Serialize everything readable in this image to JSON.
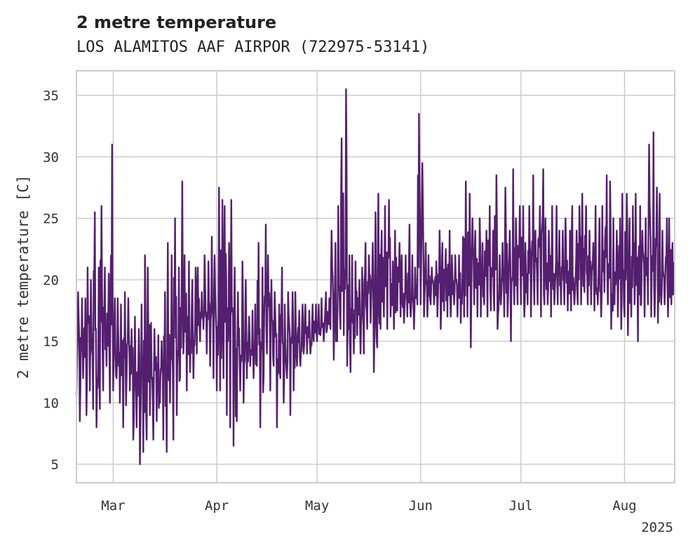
{
  "chart_data": {
    "type": "line",
    "title": "2 metre temperature",
    "subtitle": "LOS ALAMITOS AAF AIRPOR (722975-53141)",
    "xlabel": "",
    "ylabel": "2 metre temperature [C]",
    "xlim": [
      "2025-02-18",
      "2025-08-16"
    ],
    "ylim": [
      3.5,
      37
    ],
    "grid": true,
    "line_color": "#541f6e",
    "x_ticks": [
      {
        "date": "2025-03-01",
        "label": "Mar"
      },
      {
        "date": "2025-04-01",
        "label": "Apr"
      },
      {
        "date": "2025-05-01",
        "label": "May"
      },
      {
        "date": "2025-06-01",
        "label": "Jun"
      },
      {
        "date": "2025-07-01",
        "label": "Jul"
      },
      {
        "date": "2025-08-01",
        "label": "Aug"
      }
    ],
    "x_offset_label": "2025",
    "y_ticks": [
      5,
      10,
      15,
      20,
      25,
      30,
      35
    ],
    "series": [
      {
        "x": [
          "2025-02-18",
          "2025-02-19",
          "2025-02-20",
          "2025-02-21",
          "2025-02-22",
          "2025-02-23",
          "2025-02-24",
          "2025-02-25",
          "2025-02-26",
          "2025-02-27",
          "2025-02-28",
          "2025-03-01",
          "2025-03-02",
          "2025-03-03",
          "2025-03-04",
          "2025-03-05",
          "2025-03-06",
          "2025-03-07",
          "2025-03-08",
          "2025-03-09",
          "2025-03-10",
          "2025-03-11",
          "2025-03-12",
          "2025-03-13",
          "2025-03-14",
          "2025-03-15",
          "2025-03-16",
          "2025-03-17",
          "2025-03-18",
          "2025-03-19",
          "2025-03-20",
          "2025-03-21",
          "2025-03-22",
          "2025-03-23",
          "2025-03-24",
          "2025-03-25",
          "2025-03-26",
          "2025-03-27",
          "2025-03-28",
          "2025-03-29",
          "2025-03-30",
          "2025-03-31",
          "2025-04-01",
          "2025-04-02",
          "2025-04-03",
          "2025-04-04",
          "2025-04-05",
          "2025-04-06",
          "2025-04-07",
          "2025-04-08",
          "2025-04-09",
          "2025-04-10",
          "2025-04-11",
          "2025-04-12",
          "2025-04-13",
          "2025-04-14",
          "2025-04-15",
          "2025-04-16",
          "2025-04-17",
          "2025-04-18",
          "2025-04-19",
          "2025-04-20",
          "2025-04-21",
          "2025-04-22",
          "2025-04-23",
          "2025-04-24",
          "2025-04-25",
          "2025-04-26",
          "2025-04-27",
          "2025-04-28",
          "2025-04-29",
          "2025-04-30",
          "2025-05-01",
          "2025-05-02",
          "2025-05-03",
          "2025-05-04",
          "2025-05-05",
          "2025-05-06",
          "2025-05-07",
          "2025-05-08",
          "2025-05-09",
          "2025-05-10",
          "2025-05-11",
          "2025-05-12",
          "2025-05-13",
          "2025-05-14",
          "2025-05-15",
          "2025-05-16",
          "2025-05-17",
          "2025-05-18",
          "2025-05-19",
          "2025-05-20",
          "2025-05-21",
          "2025-05-22",
          "2025-05-23",
          "2025-05-24",
          "2025-05-25",
          "2025-05-26",
          "2025-05-27",
          "2025-05-28",
          "2025-05-29",
          "2025-05-30",
          "2025-05-31",
          "2025-06-01",
          "2025-06-02",
          "2025-06-03",
          "2025-06-04",
          "2025-06-05",
          "2025-06-06",
          "2025-06-07",
          "2025-06-08",
          "2025-06-09",
          "2025-06-10",
          "2025-06-11",
          "2025-06-12",
          "2025-06-13",
          "2025-06-14",
          "2025-06-15",
          "2025-06-16",
          "2025-06-17",
          "2025-06-18",
          "2025-06-19",
          "2025-06-20",
          "2025-06-21",
          "2025-06-22",
          "2025-06-23",
          "2025-06-24",
          "2025-06-25",
          "2025-06-26",
          "2025-06-27",
          "2025-06-28",
          "2025-06-29",
          "2025-06-30",
          "2025-07-01",
          "2025-07-02",
          "2025-07-03",
          "2025-07-04",
          "2025-07-05",
          "2025-07-06",
          "2025-07-07",
          "2025-07-08",
          "2025-07-09",
          "2025-07-10",
          "2025-07-11",
          "2025-07-12",
          "2025-07-13",
          "2025-07-14",
          "2025-07-15",
          "2025-07-16",
          "2025-07-17",
          "2025-07-18",
          "2025-07-19",
          "2025-07-20",
          "2025-07-21",
          "2025-07-22",
          "2025-07-23",
          "2025-07-24",
          "2025-07-25",
          "2025-07-26",
          "2025-07-27",
          "2025-07-28",
          "2025-07-29",
          "2025-07-30",
          "2025-07-31",
          "2025-08-01",
          "2025-08-02",
          "2025-08-03",
          "2025-08-04",
          "2025-08-05",
          "2025-08-06",
          "2025-08-07",
          "2025-08-08",
          "2025-08-09",
          "2025-08-10",
          "2025-08-11",
          "2025-08-12",
          "2025-08-13",
          "2025-08-14",
          "2025-08-15"
        ],
        "min": [
          10.5,
          8.5,
          12,
          9,
          11,
          9.5,
          8,
          9.5,
          11,
          13,
          10,
          11,
          12,
          10,
          8,
          12,
          11,
          7,
          8,
          5,
          6,
          7,
          9,
          7,
          8.5,
          10,
          7,
          6,
          10,
          7,
          9,
          12,
          14,
          11,
          12.5,
          12,
          14,
          15,
          16,
          14,
          13,
          12,
          11,
          11,
          12,
          9,
          8,
          6.5,
          8.5,
          11,
          10,
          12,
          13,
          12,
          13,
          8,
          12,
          14,
          11,
          13,
          8,
          12,
          10,
          12,
          9,
          11,
          13,
          13,
          14,
          14,
          14,
          15,
          15,
          15.5,
          15,
          16,
          16,
          13.5,
          15,
          16,
          15.5,
          13,
          12.5,
          14,
          15.5,
          14,
          14,
          16,
          16.5,
          12.5,
          14.5,
          16,
          17,
          16,
          17,
          16,
          17.5,
          17,
          16.5,
          17,
          17,
          16,
          18,
          18,
          17,
          17,
          18,
          18,
          17,
          16,
          17.5,
          17,
          17,
          18,
          17,
          16.5,
          17,
          17,
          14.5,
          18,
          17,
          17,
          18,
          17,
          17.5,
          17.5,
          16,
          18,
          17,
          17,
          15,
          18,
          18,
          18,
          17,
          18,
          17,
          18,
          18,
          17,
          18,
          18,
          17,
          18,
          18,
          18,
          18,
          17.5,
          17.5,
          18,
          18,
          18,
          19,
          18,
          18,
          17.5,
          18,
          17,
          19,
          18,
          16,
          18,
          17,
          16,
          17,
          15.5,
          17,
          18,
          15,
          18,
          17,
          18,
          17,
          17,
          16.5,
          18,
          18,
          17,
          18,
          18,
          18,
          18,
          18,
          19,
          18.5
        ],
        "max": [
          19,
          18.5,
          18.5,
          21,
          20,
          25.5,
          21,
          26,
          21,
          20.5,
          31,
          18.5,
          18.5,
          18,
          19,
          18.5,
          16,
          17,
          16,
          18,
          22,
          21,
          16.5,
          16,
          15.5,
          15,
          19,
          23,
          22,
          25,
          21,
          28,
          22,
          21.5,
          20,
          21,
          21,
          19,
          22,
          21.5,
          23.5,
          22,
          27.5,
          26.5,
          26,
          23,
          26.5,
          21,
          19,
          21.5,
          20,
          17,
          17.5,
          18,
          23,
          21,
          24.5,
          22,
          20,
          19,
          18,
          21,
          18,
          19,
          19,
          19,
          17.5,
          18,
          18,
          17.5,
          18,
          18,
          18,
          18.5,
          19,
          18.5,
          24,
          23,
          26,
          31.5,
          35.5,
          22,
          22,
          21.5,
          20,
          21,
          23,
          22,
          23,
          25.5,
          27,
          24,
          26,
          26.5,
          21.5,
          24,
          23,
          22,
          22,
          24.5,
          22,
          21,
          33.5,
          29.5,
          23,
          22,
          21,
          21.5,
          24,
          23,
          22.5,
          24,
          22,
          22,
          22,
          23.5,
          28,
          27,
          25,
          24,
          25,
          23,
          24,
          26,
          24,
          28.5,
          22,
          23,
          27.5,
          24,
          29,
          25,
          26,
          26,
          23,
          26,
          28.5,
          24,
          26,
          29,
          25,
          24,
          26,
          26,
          24,
          24,
          25,
          24,
          26,
          24,
          26,
          27,
          26,
          24,
          23,
          26,
          25,
          26,
          28.5,
          28,
          25,
          24,
          25,
          27,
          27,
          25,
          26,
          27,
          26,
          24,
          25,
          31,
          32,
          27.5,
          27,
          24,
          25,
          25,
          23,
          24,
          25.5,
          24
        ]
      }
    ]
  }
}
